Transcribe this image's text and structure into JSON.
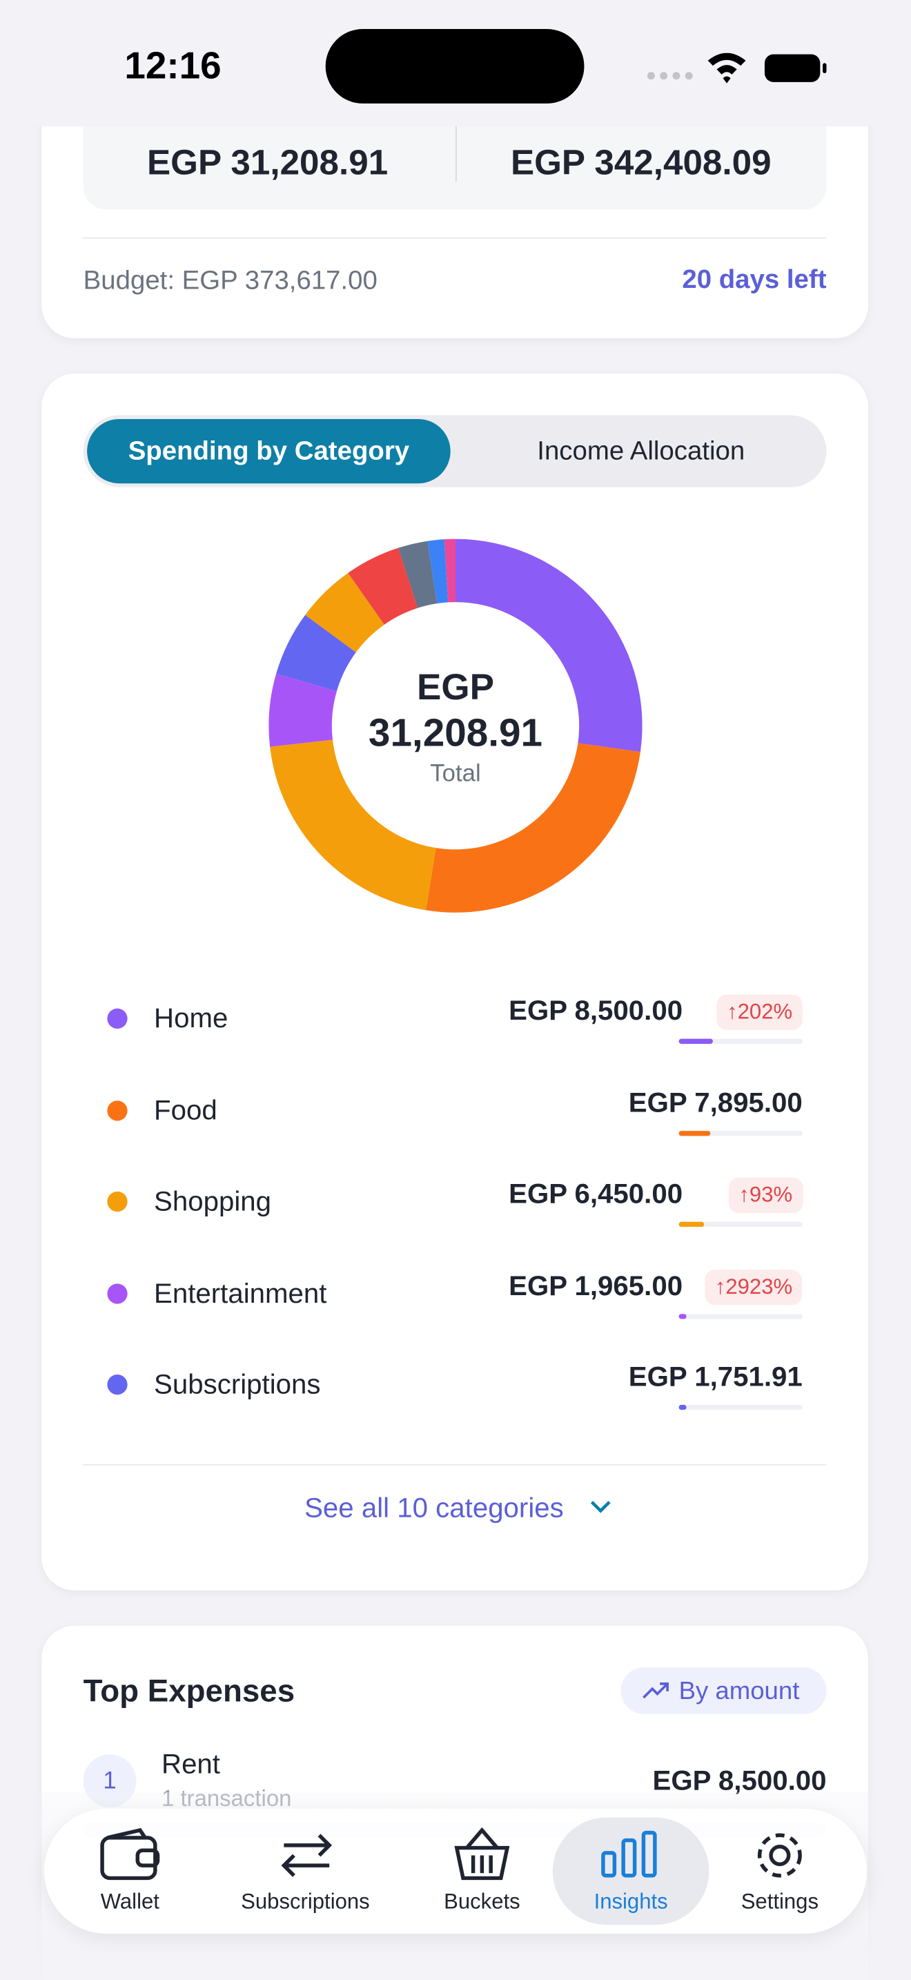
{
  "status_bar": {
    "time": "12:16"
  },
  "summary": {
    "spent": "EGP 31,208.91",
    "remaining": "EGP 342,408.09",
    "budget": "Budget: EGP 373,617.00",
    "days_left": "20 days left"
  },
  "tabs": [
    "Spending by Category",
    "Income Allocation"
  ],
  "chart_data": {
    "type": "pie",
    "center_currency": "EGP",
    "center_total": "31,208.91",
    "center_label": "Total",
    "values": [
      8500,
      7895,
      6450,
      1965,
      1751.91,
      1600,
      1500,
      800,
      450,
      297
    ],
    "colors": [
      "#8b5cf6",
      "#f97316",
      "#f59e0b",
      "#a855f7",
      "#6366f1",
      "#f59e0b",
      "#ef4444",
      "#64748b",
      "#3b82f6",
      "#ec4899"
    ]
  },
  "categories": [
    {
      "name": "Home",
      "amount": "EGP 8,500.00",
      "change": "↑202%"
    },
    {
      "name": "Food",
      "amount": "EGP 7,895.00"
    },
    {
      "name": "Shopping",
      "amount": "EGP 6,450.00",
      "change": "↑93%"
    },
    {
      "name": "Entertainment",
      "amount": "EGP 1,965.00",
      "change": "↑2923%"
    },
    {
      "name": "Subscriptions",
      "amount": "EGP 1,751.91"
    }
  ],
  "see_all": "See all 10 categories",
  "top_expenses": {
    "title": "Top Expenses",
    "sort": "By amount",
    "items": [
      {
        "rank": 1,
        "name": "Rent",
        "count": "1 transaction",
        "amount": "EGP 8,500.00"
      }
    ]
  },
  "nav": [
    "Wallet",
    "Subscriptions",
    "Buckets",
    "Insights",
    "Settings"
  ]
}
